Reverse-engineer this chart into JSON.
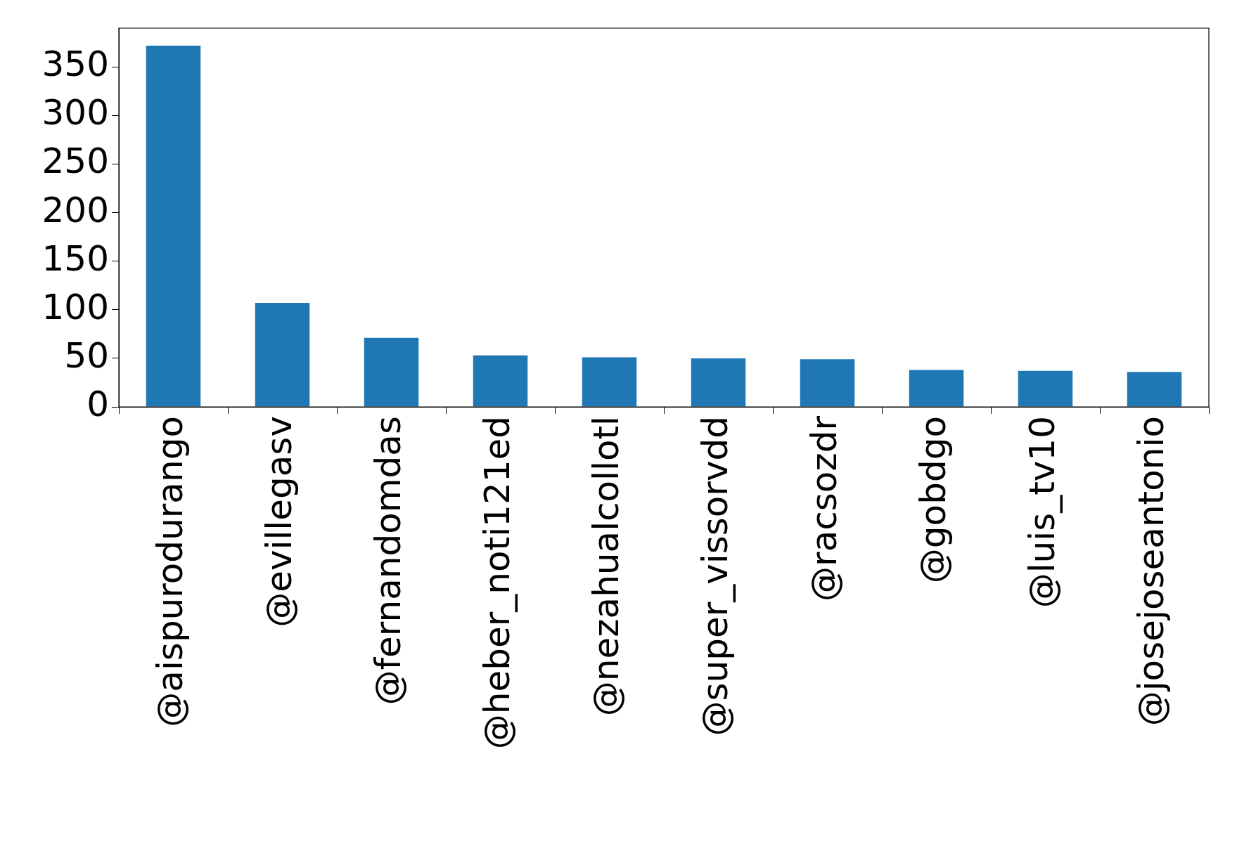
{
  "chart_data": {
    "type": "bar",
    "categories": [
      "@aispurodurango",
      "@evillegasv",
      "@fernandomdas",
      "@heber_noti121ed",
      "@nezahualcollotl",
      "@super_vissorvdd",
      "@racsozdr",
      "@gobdgo",
      "@luis_tv10",
      "@josejoseantonio"
    ],
    "values": [
      372,
      107,
      71,
      53,
      51,
      50,
      49,
      38,
      37,
      36
    ],
    "color": "#1f77b4",
    "ylim": [
      0,
      390
    ],
    "yticks": [
      0,
      50,
      100,
      150,
      200,
      250,
      300,
      350
    ],
    "legend": false
  }
}
